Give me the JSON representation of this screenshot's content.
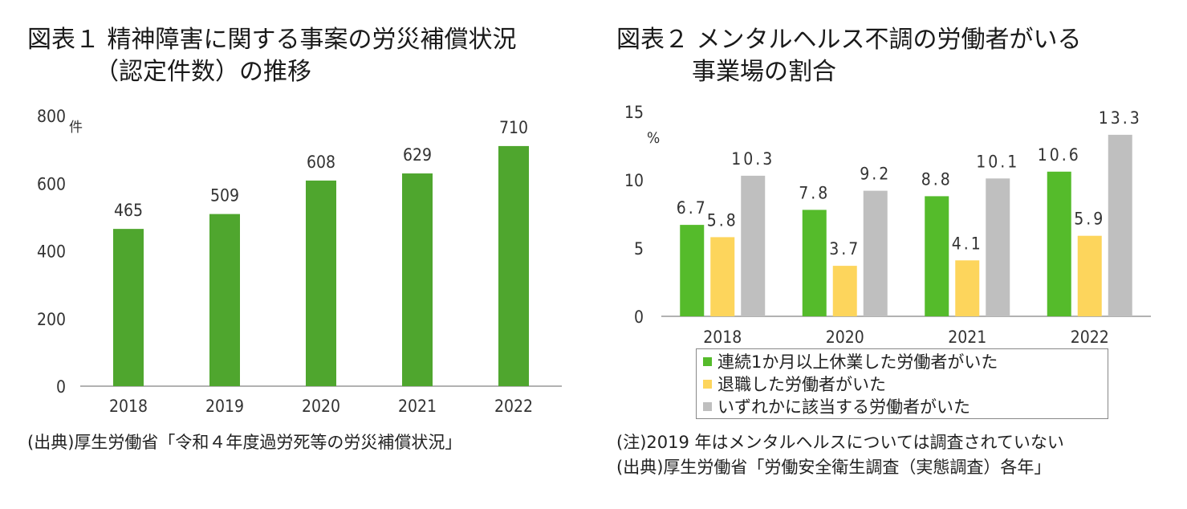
{
  "chart1": {
    "title_line1": "図表１ 精神障害に関する事案の労災補償状況",
    "title_line2": "（認定件数）の推移",
    "source": "(出典)厚生労働省「令和４年度過労死等の労災補償状況」"
  },
  "chart2": {
    "title_line1": "図表２ メンタルヘルス不調の労働者がいる",
    "title_line2": "事業場の割合",
    "note": "(注)2019 年はメンタルヘルスについては調査されていない",
    "source": "(出典)厚生労働省「労働安全衛生調査（実態調査）各年」"
  },
  "chart_data": [
    {
      "type": "bar",
      "title": "図表１ 精神障害に関する事案の労災補償状況（認定件数）の推移",
      "ylabel": "件",
      "ylim": [
        0,
        800
      ],
      "yticks": [
        0,
        200,
        400,
        600,
        800
      ],
      "categories": [
        "2018",
        "2019",
        "2020",
        "2021",
        "2022"
      ],
      "values": [
        465,
        509,
        608,
        629,
        710
      ],
      "color": "#4fa62e",
      "grid": false
    },
    {
      "type": "bar",
      "title": "図表２ メンタルヘルス不調の労働者がいる事業場の割合",
      "ylabel": "%",
      "ylim": [
        0,
        15
      ],
      "yticks": [
        0,
        5,
        10,
        15
      ],
      "categories": [
        "2018",
        "2020",
        "2021",
        "2022"
      ],
      "series": [
        {
          "name": "連続1か月以上休業した労働者がいた",
          "values": [
            6.7,
            7.8,
            8.8,
            10.6
          ],
          "color": "#55bb2b"
        },
        {
          "name": "退職した労働者がいた",
          "values": [
            5.8,
            3.7,
            4.1,
            5.9
          ],
          "color": "#fdd55c"
        },
        {
          "name": "いずれかに該当する労働者がいた",
          "values": [
            10.3,
            9.2,
            10.1,
            13.3
          ],
          "color": "#bfbfbf"
        }
      ],
      "value_labels": [
        [
          "6.7",
          "7.8",
          "8.8",
          "10.6"
        ],
        [
          "5.8",
          "3.7",
          "4.1",
          "5.9"
        ],
        [
          "10.3",
          "9.2",
          "10.1",
          "13.3"
        ]
      ],
      "legend_position": "bottom",
      "grid": false
    }
  ]
}
